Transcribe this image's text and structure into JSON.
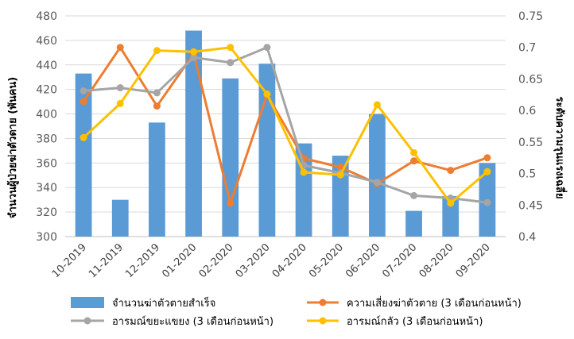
{
  "chart_data": {
    "type": "bar",
    "categories": [
      "10-2019",
      "11-2019",
      "12-2019",
      "01-2020",
      "02-2020",
      "03-2020",
      "04-2020",
      "05-2020",
      "06-2020",
      "07-2020",
      "08-2020",
      "09-2020"
    ],
    "ylabel_left": "จำนวนผู้ป่วยฆ่าตัวตาย (พันคน)",
    "ylabel_right": "ระดับความรุนแรงเฉลี่ย",
    "ylim_left": [
      300,
      480
    ],
    "yticks_left": [
      "300",
      "320",
      "340",
      "360",
      "380",
      "400",
      "420",
      "440",
      "460",
      "480"
    ],
    "ylim_right": [
      0.4,
      0.75
    ],
    "yticks_right": [
      "0.4",
      "0.45",
      "0.5",
      "0.55",
      "0.6",
      "0.65",
      "0.7",
      "0.75"
    ],
    "grid": true,
    "legend_position": "bottom",
    "series": [
      {
        "name": "จำนวนฆ่าตัวตายสำเร็จ",
        "type": "bar",
        "axis": "left",
        "color": "#5b9bd5",
        "values": [
          433,
          330,
          393,
          468,
          429,
          441,
          376,
          366,
          400,
          321,
          333,
          360
        ]
      },
      {
        "name": "ความเสี่ยงฆ่าตัวตาย (3 เดือนก่อนหน้า)",
        "type": "line",
        "axis": "right",
        "color": "#ed7d31",
        "values": [
          0.614,
          0.7,
          0.607,
          0.69,
          0.453,
          0.625,
          0.524,
          0.51,
          0.484,
          0.52,
          0.505,
          0.525
        ]
      },
      {
        "name": "อารมณ์ขยะแขยง (3 เดือนก่อนหน้า)",
        "type": "line",
        "axis": "right",
        "color": "#a5a5a5",
        "values": [
          0.631,
          0.636,
          0.628,
          0.684,
          0.676,
          0.7,
          0.513,
          0.501,
          0.486,
          0.465,
          0.461,
          0.454
        ]
      },
      {
        "name": "อารมณ์กลัว (3 เดือนก่อนหน้า)",
        "type": "line",
        "axis": "right",
        "color": "#ffc000",
        "values": [
          0.557,
          0.611,
          0.695,
          0.693,
          0.7,
          0.626,
          0.502,
          0.498,
          0.609,
          0.533,
          0.453,
          0.503
        ]
      }
    ]
  }
}
